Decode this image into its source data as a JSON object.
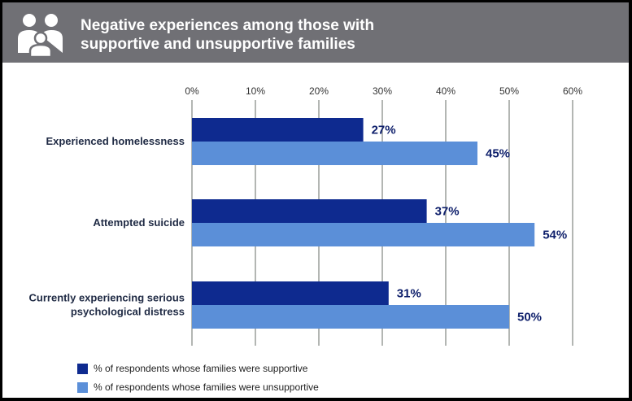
{
  "header": {
    "icon": "family-icon",
    "title_line1": "Negative experiences among those with",
    "title_line2": "supportive and unsupportive families"
  },
  "colors": {
    "header_bg": "#707075",
    "supportive": "#0e2a8f",
    "unsupportive": "#5b8fd8",
    "grid": "#8a8f8a",
    "value_text": "#0e1f6b"
  },
  "chart_data": {
    "type": "bar",
    "orientation": "horizontal",
    "categories": [
      [
        "Experienced homelessness"
      ],
      [
        "Attempted suicide"
      ],
      [
        "Currently experiencing serious",
        "psychological distress"
      ]
    ],
    "series": [
      {
        "name": "% of respondents whose families were supportive",
        "values": [
          27,
          37,
          31
        ]
      },
      {
        "name": "% of respondents whose families were unsupportive",
        "values": [
          45,
          54,
          50
        ]
      }
    ],
    "xlim": [
      0,
      60
    ],
    "xticks": [
      0,
      10,
      20,
      30,
      40,
      50,
      60
    ],
    "tick_suffix": "%",
    "grid": true,
    "legend_position": "bottom-left"
  }
}
